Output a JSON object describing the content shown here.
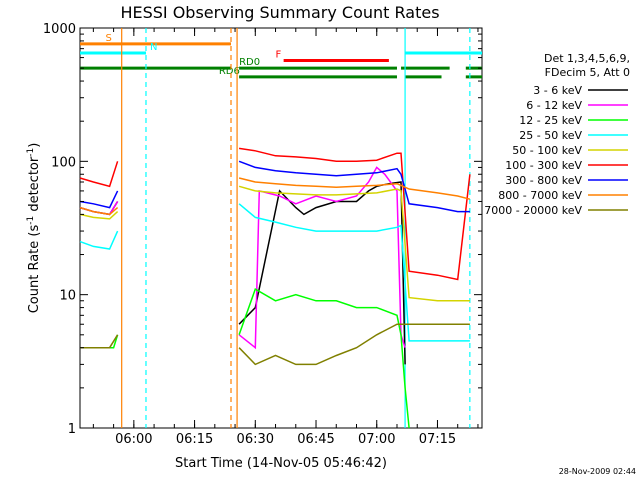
{
  "chart_data": {
    "type": "line",
    "title": "HESSI Observing Summary Count Rates",
    "xlabel": "Start Time (14-Nov-05 05:46:42)",
    "ylabel": "Count Rate (s",
    "ylabel_sup": "-1",
    "ylabel_tail": " detector",
    "ylabel_sup2": "-1",
    "ylabel_end": ")",
    "y_scale": "log",
    "ylim": [
      1,
      1000
    ],
    "xlim": [
      "05:46:42",
      "07:26:00"
    ],
    "x_tick_labels": [
      "06:00",
      "06:15",
      "06:30",
      "06:45",
      "07:00",
      "07:15"
    ],
    "x_tick_values": [
      "06:00",
      "06:15",
      "06:30",
      "06:45",
      "07:00",
      "07:15"
    ],
    "y_tick_labels": [
      "1",
      "10",
      "100",
      "1000"
    ],
    "y_tick_values": [
      1,
      10,
      100,
      1000
    ],
    "legend_header": [
      "Det 1,3,4,5,6,9,",
      "FDecim 5, Att 0"
    ],
    "legend_placement": "right",
    "timestamp": "28-Nov-2009 02:44",
    "flags": [
      {
        "label": "S",
        "color": "#ff8000",
        "y": 760,
        "segments": [
          [
            "05:46:42",
            "05:57:00"
          ],
          [
            "05:57:00",
            "06:24:00"
          ]
        ],
        "label_at": "05:53:00"
      },
      {
        "label": "N",
        "color": "#00ffff",
        "y": 650,
        "segments": [
          [
            "05:46:42",
            "06:03:00"
          ],
          [
            "07:07:00",
            "07:26:00"
          ]
        ],
        "label_at": "06:04:00"
      },
      {
        "label": "F",
        "color": "#ff0000",
        "y": 570,
        "segments": [
          [
            "06:37:00",
            "07:03:00"
          ]
        ],
        "label_at": "06:35:00"
      },
      {
        "label": "RD0",
        "color": "#008000",
        "y": 500,
        "segments": [
          [
            "05:46:42",
            "06:24:00"
          ],
          [
            "06:26:00",
            "07:05:00"
          ],
          [
            "07:06:00",
            "07:18:00"
          ],
          [
            "07:22:00",
            "07:26:00"
          ]
        ],
        "label_at": "06:26:00"
      },
      {
        "label": "RD6",
        "color": "#008000",
        "y": 430,
        "segments": [
          [
            "06:26:00",
            "07:05:00"
          ],
          [
            "07:07:00",
            "07:16:00"
          ],
          [
            "07:22:00",
            "07:26:00"
          ]
        ],
        "label_at": "06:21:00"
      }
    ],
    "vlines": [
      {
        "time": "05:57:00",
        "color": "#ff8000",
        "style": "solid"
      },
      {
        "time": "06:03:00",
        "color": "#00ffff",
        "style": "dashed"
      },
      {
        "time": "06:24:00",
        "color": "#ff8000",
        "style": "dashed"
      },
      {
        "time": "06:25:30",
        "color": "#ff8000",
        "style": "solid"
      },
      {
        "time": "07:07:00",
        "color": "#00ffff",
        "style": "solid"
      },
      {
        "time": "07:23:00",
        "color": "#00ffff",
        "style": "dashed"
      }
    ],
    "gaps": [
      [
        "05:57:00",
        "06:25:30"
      ]
    ],
    "series": [
      {
        "name": "3 - 6 keV",
        "color": "#000000",
        "x": [
          "05:46:42",
          "05:50:00",
          "05:54:00",
          "05:56:00",
          "06:26:00",
          "06:30:00",
          "06:36:00",
          "06:40:00",
          "06:42:00",
          "06:45:00",
          "06:50:00",
          "06:55:00",
          "06:58:00",
          "07:00:00",
          "07:03:00",
          "07:06:00",
          "07:07:00"
        ],
        "y": [
          45,
          42,
          40,
          50,
          6,
          8,
          60,
          45,
          40,
          45,
          50,
          50,
          60,
          65,
          68,
          70,
          3
        ]
      },
      {
        "name": "6 - 12 keV",
        "color": "#ff00ff",
        "x": [
          "05:46:42",
          "05:50:00",
          "05:54:00",
          "05:56:00",
          "06:26:00",
          "06:30:00",
          "06:31:00",
          "06:36:00",
          "06:40:00",
          "06:45:00",
          "06:50:00",
          "06:55:00",
          "06:58:00",
          "07:00:00",
          "07:02:00",
          "07:05:00",
          "07:06:00",
          "07:07:00"
        ],
        "y": [
          45,
          42,
          40,
          50,
          5,
          4,
          60,
          55,
          48,
          55,
          50,
          55,
          70,
          90,
          80,
          60,
          5,
          4
        ]
      },
      {
        "name": "12 - 25 keV",
        "color": "#00ff00",
        "x": [
          "05:46:42",
          "05:50:00",
          "05:55:00",
          "05:56:00",
          "06:26:00",
          "06:30:00",
          "06:35:00",
          "06:40:00",
          "06:45:00",
          "06:50:00",
          "06:55:00",
          "07:00:00",
          "07:05:00",
          "07:06:00",
          "07:07:00",
          "07:08:00"
        ],
        "y": [
          4,
          4,
          4,
          5,
          5,
          11,
          9,
          10,
          9,
          9,
          8,
          8,
          7,
          5,
          2,
          1
        ]
      },
      {
        "name": "25 - 50 keV",
        "color": "#00ffff",
        "x": [
          "05:46:42",
          "05:50:00",
          "05:54:00",
          "05:56:00",
          "06:26:00",
          "06:30:00",
          "06:35:00",
          "06:40:00",
          "06:45:00",
          "06:50:00",
          "06:55:00",
          "07:00:00",
          "07:05:00",
          "07:06:00",
          "07:08:00",
          "07:15:00",
          "07:20:00",
          "07:23:00"
        ],
        "y": [
          25,
          23,
          22,
          30,
          48,
          38,
          35,
          32,
          30,
          30,
          30,
          30,
          32,
          33,
          4.5,
          4.5,
          4.5,
          4.5
        ]
      },
      {
        "name": "50 - 100 keV",
        "color": "#d4d400",
        "x": [
          "05:46:42",
          "05:50:00",
          "05:54:00",
          "05:56:00",
          "06:26:00",
          "06:30:00",
          "06:35:00",
          "06:40:00",
          "06:45:00",
          "06:50:00",
          "06:55:00",
          "07:00:00",
          "07:05:00",
          "07:06:00",
          "07:08:00",
          "07:15:00",
          "07:20:00",
          "07:23:00"
        ],
        "y": [
          40,
          38,
          37,
          42,
          65,
          60,
          58,
          57,
          56,
          56,
          57,
          58,
          62,
          60,
          9.5,
          9,
          9,
          9
        ]
      },
      {
        "name": "100 - 300 keV",
        "color": "#ff0000",
        "x": [
          "05:46:42",
          "05:50:00",
          "05:54:00",
          "05:56:00",
          "06:26:00",
          "06:30:00",
          "06:35:00",
          "06:40:00",
          "06:45:00",
          "06:50:00",
          "06:55:00",
          "07:00:00",
          "07:05:00",
          "07:06:00",
          "07:08:00",
          "07:15:00",
          "07:20:00",
          "07:23:00"
        ],
        "y": [
          75,
          70,
          65,
          100,
          125,
          120,
          110,
          108,
          105,
          100,
          100,
          102,
          115,
          115,
          15,
          14,
          13,
          80
        ]
      },
      {
        "name": "300 - 800 keV",
        "color": "#0000ff",
        "x": [
          "05:46:42",
          "05:50:00",
          "05:54:00",
          "05:56:00",
          "06:26:00",
          "06:30:00",
          "06:35:00",
          "06:40:00",
          "06:45:00",
          "06:50:00",
          "06:55:00",
          "07:00:00",
          "07:05:00",
          "07:06:00",
          "07:08:00",
          "07:15:00",
          "07:20:00",
          "07:23:00"
        ],
        "y": [
          50,
          48,
          45,
          60,
          100,
          90,
          85,
          82,
          80,
          78,
          80,
          82,
          88,
          80,
          48,
          45,
          42,
          42
        ]
      },
      {
        "name": "800 - 7000 keV",
        "color": "#ff8000",
        "x": [
          "05:46:42",
          "05:50:00",
          "05:54:00",
          "05:56:00",
          "06:26:00",
          "06:30:00",
          "06:35:00",
          "06:40:00",
          "06:45:00",
          "06:50:00",
          "06:55:00",
          "07:00:00",
          "07:05:00",
          "07:06:00",
          "07:08:00",
          "07:15:00",
          "07:20:00",
          "07:23:00"
        ],
        "y": [
          45,
          42,
          40,
          45,
          75,
          70,
          68,
          66,
          65,
          64,
          65,
          66,
          68,
          66,
          62,
          58,
          55,
          52
        ]
      },
      {
        "name": "7000 - 20000 keV",
        "color": "#808000",
        "x": [
          "05:46:42",
          "05:50:00",
          "05:54:00",
          "05:56:00",
          "06:26:00",
          "06:30:00",
          "06:35:00",
          "06:40:00",
          "06:45:00",
          "06:50:00",
          "06:55:00",
          "07:00:00",
          "07:05:00",
          "07:06:00",
          "07:08:00",
          "07:15:00",
          "07:20:00",
          "07:23:00"
        ],
        "y": [
          4,
          4,
          4,
          5,
          4,
          3,
          3.5,
          3,
          3,
          3.5,
          4,
          5,
          6,
          6,
          6,
          6,
          6,
          6
        ]
      }
    ]
  }
}
